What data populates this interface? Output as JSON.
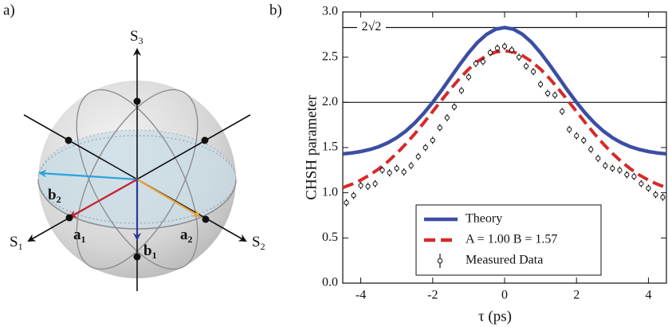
{
  "panel_a": {
    "label": "a)",
    "axes": [
      {
        "base": "S",
        "sub": "1"
      },
      {
        "base": "S",
        "sub": "2"
      },
      {
        "base": "S",
        "sub": "3"
      }
    ],
    "vectors": [
      {
        "base": "a",
        "sub": "1"
      },
      {
        "base": "a",
        "sub": "2"
      },
      {
        "base": "b",
        "sub": "1"
      },
      {
        "base": "b",
        "sub": "2"
      }
    ]
  },
  "chart_data": {
    "type": "line",
    "panel_label": "b)",
    "x_label": "τ (ps)",
    "y_label": "CHSH parameter",
    "xlim": [
      -4.5,
      4.5
    ],
    "xticks": [
      -4,
      -2,
      0,
      2,
      4
    ],
    "ylim": [
      0,
      3
    ],
    "yticks": [
      {
        "value": 0,
        "label": "0.0"
      },
      0.5,
      {
        "value": 1,
        "label": "1.0"
      },
      1.5,
      {
        "value": 2,
        "label": "2.0"
      },
      2.5,
      {
        "value": 3,
        "label": "3.0"
      }
    ],
    "hlines": [
      {
        "value": 2.828,
        "label": "2√2"
      },
      {
        "value": 2
      }
    ],
    "legend": "lower center",
    "series": [
      {
        "name": "Theory",
        "kind": "line",
        "dashed": false,
        "color": "#3b4ea3",
        "x": [
          -4.5,
          -4.25,
          -4,
          -3.75,
          -3.5,
          -3.25,
          -3,
          -2.75,
          -2.5,
          -2.25,
          -2,
          -1.75,
          -1.5,
          -1.25,
          -1,
          -0.75,
          -0.5,
          -0.25,
          0,
          0.25,
          0.5,
          0.75,
          1,
          1.25,
          1.5,
          1.75,
          2,
          2.25,
          2.5,
          2.75,
          3,
          3.25,
          3.5,
          3.75,
          4,
          4.25,
          4.5
        ],
        "values": [
          1.43,
          1.44,
          1.456,
          1.478,
          1.509,
          1.552,
          1.609,
          1.681,
          1.771,
          1.878,
          2.0,
          2.134,
          2.276,
          2.416,
          2.549,
          2.664,
          2.752,
          2.809,
          2.828,
          2.809,
          2.752,
          2.664,
          2.549,
          2.416,
          2.276,
          2.134,
          2.0,
          1.878,
          1.771,
          1.681,
          1.609,
          1.552,
          1.509,
          1.478,
          1.456,
          1.44,
          1.43
        ]
      },
      {
        "name": "A = 1.00 B = 1.57",
        "kind": "line",
        "dashed": true,
        "color": "#d42a2a",
        "x": [
          -4.5,
          -4.25,
          -4,
          -3.75,
          -3.5,
          -3.25,
          -3,
          -2.75,
          -2.5,
          -2.25,
          -2,
          -1.75,
          -1.5,
          -1.25,
          -1,
          -0.75,
          -0.5,
          -0.25,
          0,
          0.25,
          0.5,
          0.75,
          1,
          1.25,
          1.5,
          1.75,
          2,
          2.25,
          2.5,
          2.75,
          3,
          3.25,
          3.5,
          3.75,
          4,
          4.25,
          4.5
        ],
        "values": [
          1.057,
          1.094,
          1.14,
          1.196,
          1.264,
          1.343,
          1.435,
          1.538,
          1.651,
          1.772,
          1.898,
          2.025,
          2.148,
          2.264,
          2.367,
          2.452,
          2.517,
          2.557,
          2.57,
          2.557,
          2.517,
          2.452,
          2.367,
          2.264,
          2.148,
          2.025,
          1.898,
          1.772,
          1.651,
          1.538,
          1.435,
          1.343,
          1.264,
          1.196,
          1.14,
          1.094,
          1.057
        ]
      },
      {
        "name": "Measured Data",
        "kind": "errorbar",
        "color": "#111111",
        "x": [
          -4.4,
          -4.2,
          -4,
          -3.8,
          -3.6,
          -3.4,
          -3.2,
          -3,
          -2.8,
          -2.6,
          -2.4,
          -2.2,
          -2,
          -1.8,
          -1.6,
          -1.4,
          -1.2,
          -1,
          -0.8,
          -0.6,
          -0.4,
          -0.2,
          0,
          0.2,
          0.4,
          0.6,
          0.8,
          1,
          1.2,
          1.4,
          1.6,
          1.8,
          2,
          2.2,
          2.4,
          2.6,
          2.8,
          3,
          3.2,
          3.4,
          3.6,
          3.8,
          4,
          4.2,
          4.4
        ],
        "values": [
          0.89,
          0.97,
          1.08,
          1.07,
          1.1,
          1.25,
          1.22,
          1.27,
          1.23,
          1.3,
          1.4,
          1.5,
          1.58,
          1.72,
          1.83,
          1.95,
          2.13,
          2.28,
          2.43,
          2.45,
          2.55,
          2.6,
          2.62,
          2.58,
          2.5,
          2.4,
          2.34,
          2.2,
          2.1,
          2.08,
          1.9,
          1.7,
          1.63,
          1.58,
          1.48,
          1.38,
          1.3,
          1.27,
          1.25,
          1.2,
          1.18,
          1.1,
          1.05,
          0.98,
          0.95
        ],
        "errors": [
          0.04,
          0.04,
          0.04,
          0.04,
          0.04,
          0.04,
          0.04,
          0.04,
          0.04,
          0.04,
          0.04,
          0.04,
          0.04,
          0.04,
          0.04,
          0.04,
          0.04,
          0.04,
          0.04,
          0.04,
          0.04,
          0.04,
          0.04,
          0.04,
          0.04,
          0.04,
          0.04,
          0.04,
          0.04,
          0.04,
          0.04,
          0.04,
          0.04,
          0.04,
          0.04,
          0.04,
          0.04,
          0.04,
          0.04,
          0.04,
          0.04,
          0.04,
          0.04,
          0.04,
          0.04
        ]
      }
    ]
  }
}
